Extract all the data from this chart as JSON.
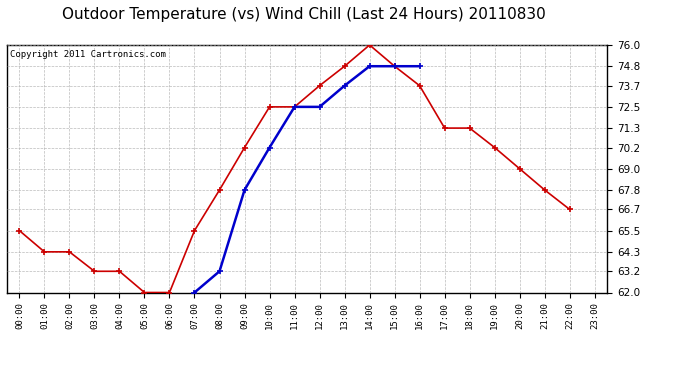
{
  "title": "Outdoor Temperature (vs) Wind Chill (Last 24 Hours) 20110830",
  "copyright": "Copyright 2011 Cartronics.com",
  "x_labels": [
    "00:00",
    "01:00",
    "02:00",
    "03:00",
    "04:00",
    "05:00",
    "06:00",
    "07:00",
    "08:00",
    "09:00",
    "10:00",
    "11:00",
    "12:00",
    "13:00",
    "14:00",
    "15:00",
    "16:00",
    "17:00",
    "18:00",
    "19:00",
    "20:00",
    "21:00",
    "22:00",
    "23:00"
  ],
  "temp_red": [
    65.5,
    64.3,
    64.3,
    63.2,
    63.2,
    62.0,
    62.0,
    65.5,
    67.8,
    70.2,
    72.5,
    72.5,
    73.7,
    74.8,
    76.0,
    74.8,
    73.7,
    71.3,
    71.3,
    70.2,
    69.0,
    67.8,
    66.7,
    null
  ],
  "wind_chill_blue": [
    null,
    null,
    null,
    null,
    null,
    null,
    null,
    62.0,
    63.2,
    67.8,
    70.2,
    72.5,
    72.5,
    73.7,
    74.8,
    74.8,
    74.8,
    null,
    null,
    null,
    null,
    null,
    null,
    null
  ],
  "ylim": [
    62.0,
    76.0
  ],
  "yticks": [
    62.0,
    63.2,
    64.3,
    65.5,
    66.7,
    67.8,
    69.0,
    70.2,
    71.3,
    72.5,
    73.7,
    74.8,
    76.0
  ],
  "bg_color": "#ffffff",
  "plot_bg_color": "#ffffff",
  "grid_color": "#aaaaaa",
  "red_color": "#cc0000",
  "blue_color": "#0000cc",
  "title_fontsize": 11,
  "copyright_fontsize": 6.5
}
